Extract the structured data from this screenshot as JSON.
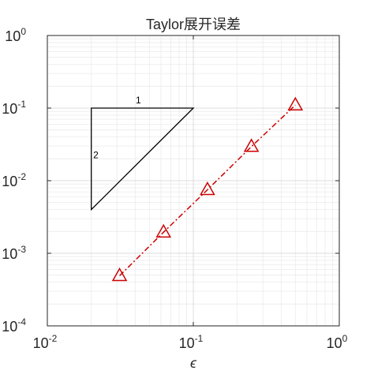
{
  "chart_data": {
    "type": "line",
    "title": "Taylor展开误差",
    "xlabel": "ϵ",
    "ylabel": "",
    "xscale": "log",
    "yscale": "log",
    "xlim": [
      0.01,
      1
    ],
    "ylim": [
      0.0001,
      1
    ],
    "grid": true,
    "legend": "none",
    "x_ticks": [
      {
        "value": 0.01,
        "base": "10",
        "exp": "-2"
      },
      {
        "value": 0.1,
        "base": "10",
        "exp": "-1"
      },
      {
        "value": 1,
        "base": "10",
        "exp": "0"
      }
    ],
    "y_ticks": [
      {
        "value": 0.0001,
        "base": "10",
        "exp": "-4"
      },
      {
        "value": 0.001,
        "base": "10",
        "exp": "-3"
      },
      {
        "value": 0.01,
        "base": "10",
        "exp": "-2"
      },
      {
        "value": 0.1,
        "base": "10",
        "exp": "-1"
      },
      {
        "value": 1,
        "base": "10",
        "exp": "0"
      }
    ],
    "series": [
      {
        "color": "#cc0000",
        "line_style": "dash-dot",
        "marker": "triangle",
        "x": [
          0.03125,
          0.0625,
          0.125,
          0.25,
          0.5
        ],
        "y": [
          0.00049,
          0.00195,
          0.0075,
          0.0295,
          0.11
        ]
      }
    ],
    "slope_triangle": {
      "color": "#000000",
      "vertices": [
        [
          0.02,
          0.1
        ],
        [
          0.1,
          0.1
        ],
        [
          0.02,
          0.004
        ]
      ],
      "labels": [
        {
          "text": "1",
          "x": 0.042,
          "y": 0.116
        },
        {
          "text": "2",
          "x": 0.0215,
          "y": 0.0205
        }
      ]
    }
  }
}
